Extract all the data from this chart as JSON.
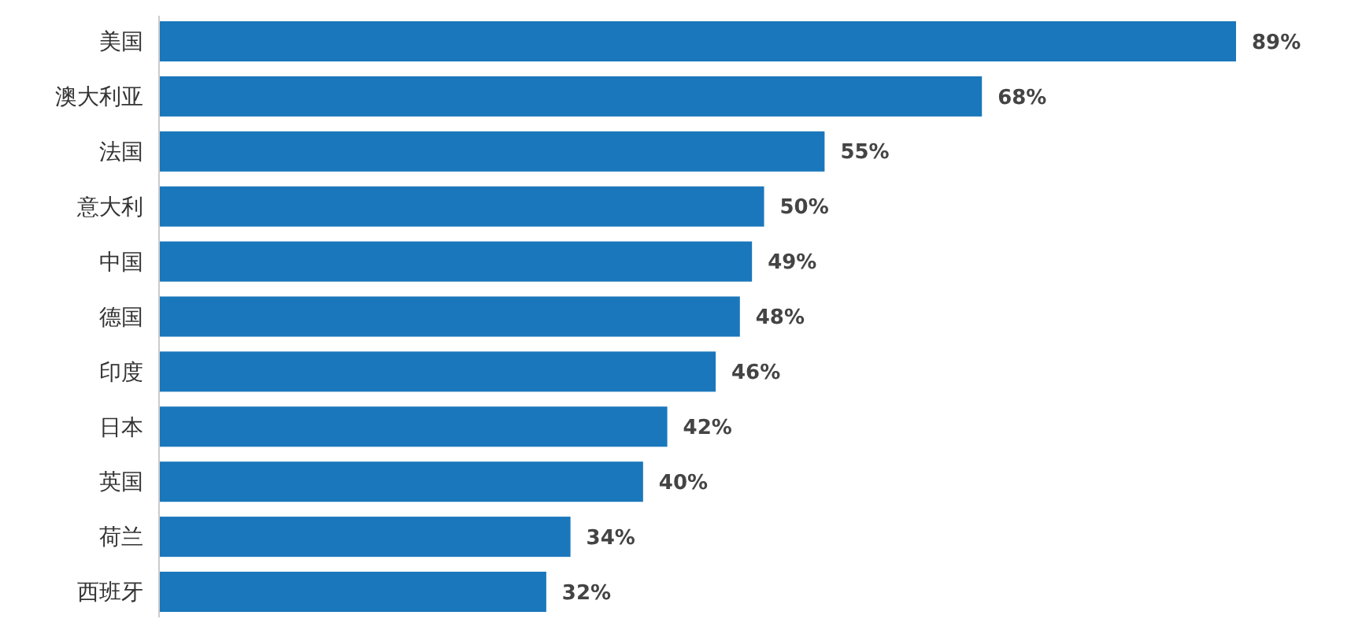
{
  "chart_data": {
    "type": "bar",
    "orientation": "horizontal",
    "relative": false,
    "categories": [
      "美国",
      "澳大利亚",
      "法国",
      "意大利",
      "中国",
      "德国",
      "印度",
      "日本",
      "英国",
      "荷兰",
      "西班牙"
    ],
    "values": [
      89,
      68,
      55,
      50,
      49,
      48,
      46,
      42,
      40,
      34,
      32
    ],
    "value_labels": [
      "89%",
      "68%",
      "55%",
      "50%",
      "49%",
      "48%",
      "46%",
      "42%",
      "40%",
      "34%",
      "32%"
    ],
    "color": "#1a77bb"
  }
}
